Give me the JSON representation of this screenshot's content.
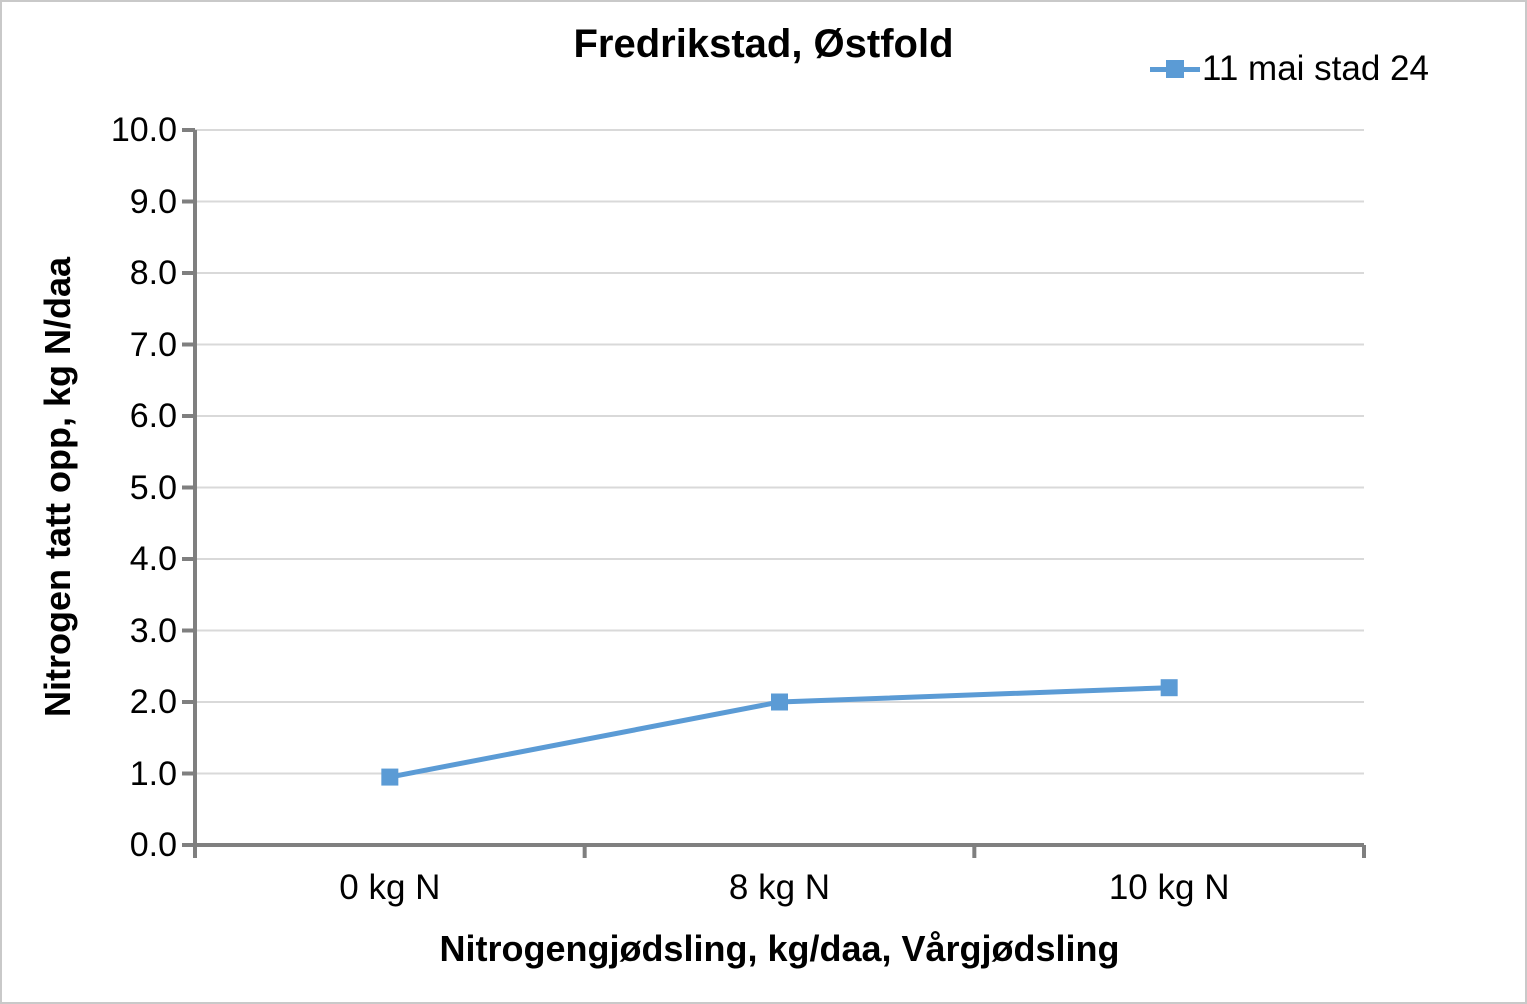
{
  "chart_data": {
    "type": "line",
    "title": "Fredrikstad, Østfold",
    "categories": [
      "0 kg N",
      "8 kg N",
      "10 kg N"
    ],
    "series": [
      {
        "name": "11 mai stad 24",
        "values": [
          0.95,
          2.0,
          2.2
        ],
        "color": "#5B9BD5",
        "marker": "square"
      }
    ],
    "xlabel": "Nitrogengjødsling, kg/daa, Vårgjødsling",
    "ylabel": "Nitrogen tatt opp, kg N/daa",
    "ylim": [
      0.0,
      10.0
    ],
    "ytick_step": 1.0,
    "ytick_decimals": 1,
    "grid": "horizontal-only",
    "legend_position": "top-right",
    "colors": {
      "gridline": "#D9D9D9",
      "axis": "#7F7F7F",
      "text": "#000000",
      "background": "#FFFFFF",
      "frame_border": "#C9C9C9"
    }
  }
}
